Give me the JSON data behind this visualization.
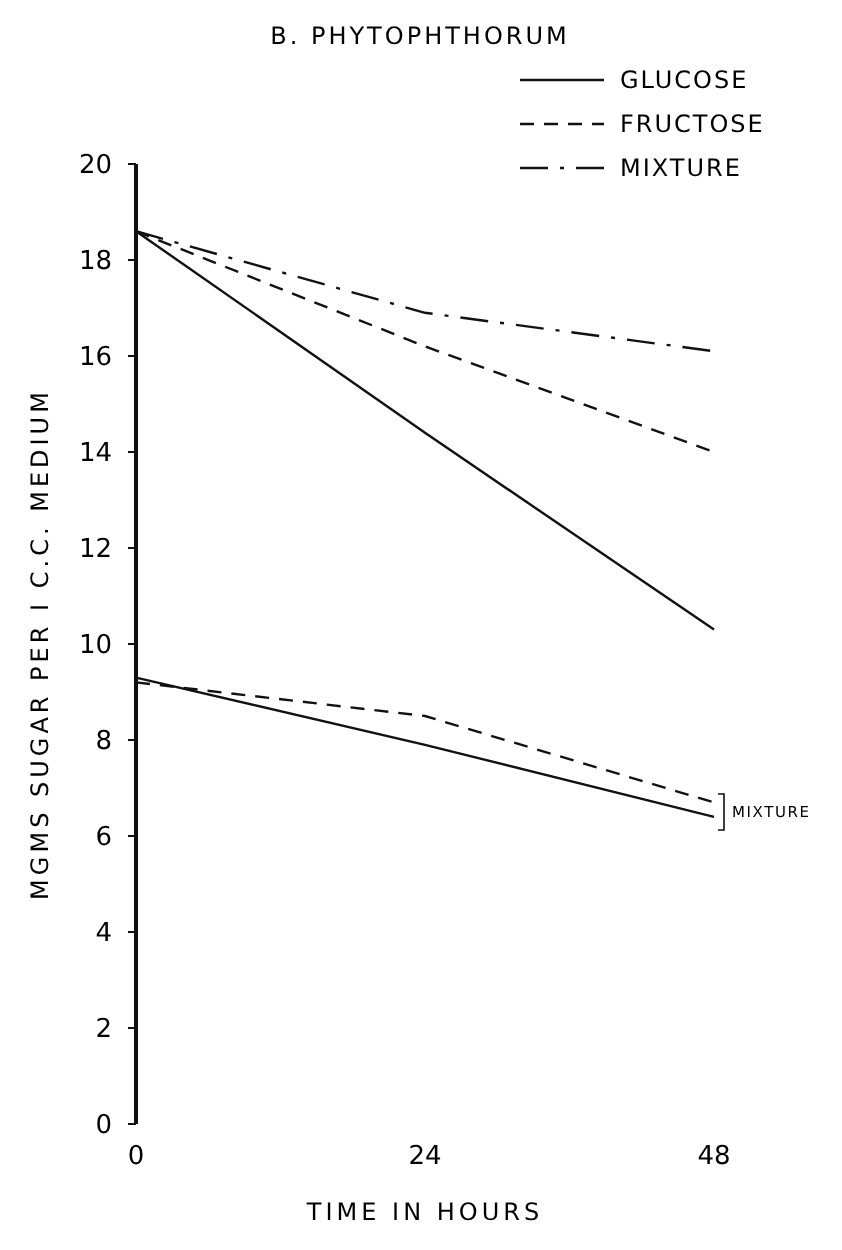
{
  "chart_data": {
    "type": "line",
    "title": "B. PHYTOPHTHORUM",
    "xlabel": "TIME IN HOURS",
    "ylabel": "MGMS SUGAR PER I C.C. MEDIUM",
    "x": [
      0,
      24,
      48
    ],
    "xlim": [
      0,
      48
    ],
    "xticks": [
      0,
      24,
      48
    ],
    "ylim": [
      0,
      20
    ],
    "yticks": [
      0,
      2,
      4,
      6,
      8,
      10,
      12,
      14,
      16,
      18,
      20
    ],
    "grid": false,
    "legend": "top right",
    "marker": "none",
    "series": [
      {
        "name": "GLUCOSE",
        "color": "#111111",
        "line_style": "solid",
        "values": [
          18.6,
          14.4,
          10.3
        ]
      },
      {
        "name": "FRUCTOSE",
        "color": "#111111",
        "line_style": "dashed",
        "values": [
          18.6,
          16.2,
          14.0
        ]
      },
      {
        "name": "MIXTURE",
        "color": "#111111",
        "line_style": "dashdot",
        "values": [
          18.6,
          16.9,
          16.1
        ]
      },
      {
        "color": "#111111",
        "line_style": "solid",
        "values": [
          9.3,
          7.9,
          6.4
        ]
      },
      {
        "color": "#111111",
        "line_style": "dashed",
        "values": [
          9.2,
          8.5,
          6.7
        ]
      }
    ],
    "annotations": [
      {
        "text": "MIXTURE",
        "x": 48,
        "y": 6.5
      }
    ]
  }
}
